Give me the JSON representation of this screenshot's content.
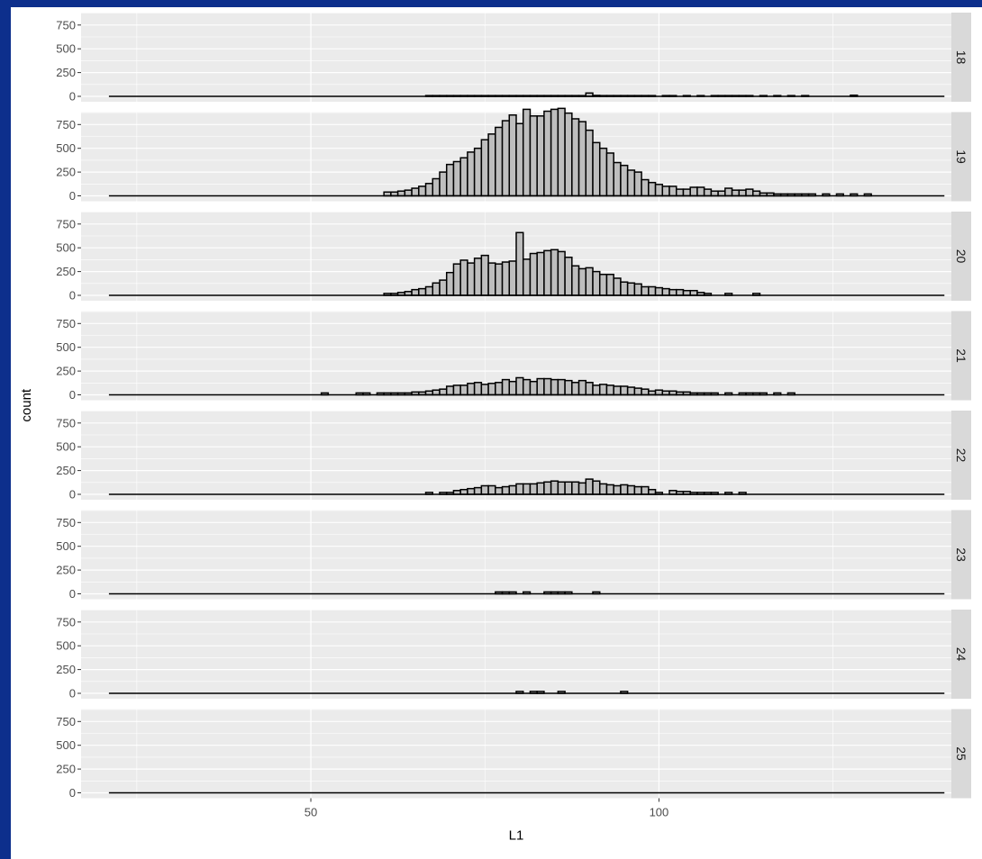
{
  "chart_data": {
    "type": "bar",
    "title": "",
    "xlabel": "L1",
    "ylabel": "count",
    "x_range": [
      17,
      142
    ],
    "y_range": [
      0,
      980
    ],
    "x_ticks": [
      50,
      100
    ],
    "y_ticks": [
      0,
      250,
      500,
      750
    ],
    "x_tick_labels": [
      "50",
      "100"
    ],
    "y_tick_labels": [
      "0",
      "250",
      "500",
      "750"
    ],
    "bin_width": 1,
    "baseline_range": [
      21,
      141
    ],
    "colors": {
      "panel": "#ebebeb",
      "grid": "#ffffff",
      "bar_fill": "#bebebe",
      "bar_stroke": "#000000",
      "strip": "#d9d9d9",
      "text": "#4d4d4d"
    },
    "facets": [
      {
        "label": "18",
        "bins": [
          [
            67,
            8
          ],
          [
            68,
            8
          ],
          [
            69,
            8
          ],
          [
            70,
            8
          ],
          [
            71,
            8
          ],
          [
            72,
            8
          ],
          [
            73,
            8
          ],
          [
            74,
            8
          ],
          [
            75,
            8
          ],
          [
            76,
            8
          ],
          [
            77,
            8
          ],
          [
            78,
            8
          ],
          [
            79,
            8
          ],
          [
            80,
            8
          ],
          [
            81,
            8
          ],
          [
            82,
            8
          ],
          [
            83,
            8
          ],
          [
            84,
            8
          ],
          [
            85,
            8
          ],
          [
            86,
            8
          ],
          [
            87,
            8
          ],
          [
            88,
            8
          ],
          [
            89,
            8
          ],
          [
            90,
            35
          ],
          [
            91,
            10
          ],
          [
            92,
            8
          ],
          [
            93,
            8
          ],
          [
            94,
            8
          ],
          [
            95,
            8
          ],
          [
            96,
            8
          ],
          [
            97,
            8
          ],
          [
            98,
            8
          ],
          [
            99,
            8
          ],
          [
            101,
            8
          ],
          [
            102,
            8
          ],
          [
            104,
            8
          ],
          [
            106,
            8
          ],
          [
            108,
            8
          ],
          [
            109,
            8
          ],
          [
            110,
            8
          ],
          [
            111,
            8
          ],
          [
            112,
            8
          ],
          [
            113,
            8
          ],
          [
            115,
            8
          ],
          [
            117,
            8
          ],
          [
            119,
            8
          ],
          [
            121,
            8
          ],
          [
            128,
            12
          ]
        ]
      },
      {
        "label": "19",
        "bins": [
          [
            61,
            40
          ],
          [
            62,
            40
          ],
          [
            63,
            50
          ],
          [
            64,
            60
          ],
          [
            65,
            80
          ],
          [
            66,
            100
          ],
          [
            67,
            130
          ],
          [
            68,
            180
          ],
          [
            69,
            250
          ],
          [
            70,
            330
          ],
          [
            71,
            360
          ],
          [
            72,
            400
          ],
          [
            73,
            460
          ],
          [
            74,
            500
          ],
          [
            75,
            590
          ],
          [
            76,
            650
          ],
          [
            77,
            720
          ],
          [
            78,
            790
          ],
          [
            79,
            850
          ],
          [
            80,
            760
          ],
          [
            81,
            910
          ],
          [
            82,
            840
          ],
          [
            83,
            840
          ],
          [
            84,
            890
          ],
          [
            85,
            910
          ],
          [
            86,
            920
          ],
          [
            87,
            870
          ],
          [
            88,
            810
          ],
          [
            89,
            780
          ],
          [
            90,
            690
          ],
          [
            91,
            560
          ],
          [
            92,
            500
          ],
          [
            93,
            450
          ],
          [
            94,
            350
          ],
          [
            95,
            320
          ],
          [
            96,
            270
          ],
          [
            97,
            250
          ],
          [
            98,
            170
          ],
          [
            99,
            140
          ],
          [
            100,
            120
          ],
          [
            101,
            100
          ],
          [
            102,
            100
          ],
          [
            103,
            70
          ],
          [
            104,
            70
          ],
          [
            105,
            90
          ],
          [
            106,
            90
          ],
          [
            107,
            70
          ],
          [
            108,
            50
          ],
          [
            109,
            50
          ],
          [
            110,
            80
          ],
          [
            111,
            60
          ],
          [
            112,
            60
          ],
          [
            113,
            70
          ],
          [
            114,
            50
          ],
          [
            115,
            30
          ],
          [
            116,
            30
          ],
          [
            117,
            20
          ],
          [
            118,
            20
          ],
          [
            119,
            20
          ],
          [
            120,
            20
          ],
          [
            121,
            20
          ],
          [
            122,
            20
          ],
          [
            124,
            20
          ],
          [
            126,
            20
          ],
          [
            128,
            20
          ],
          [
            130,
            20
          ]
        ]
      },
      {
        "label": "20",
        "bins": [
          [
            61,
            20
          ],
          [
            62,
            20
          ],
          [
            63,
            30
          ],
          [
            64,
            40
          ],
          [
            65,
            60
          ],
          [
            66,
            70
          ],
          [
            67,
            90
          ],
          [
            68,
            130
          ],
          [
            69,
            160
          ],
          [
            70,
            240
          ],
          [
            71,
            330
          ],
          [
            72,
            370
          ],
          [
            73,
            340
          ],
          [
            74,
            390
          ],
          [
            75,
            420
          ],
          [
            76,
            340
          ],
          [
            77,
            330
          ],
          [
            78,
            350
          ],
          [
            79,
            360
          ],
          [
            80,
            660
          ],
          [
            81,
            380
          ],
          [
            82,
            440
          ],
          [
            83,
            450
          ],
          [
            84,
            470
          ],
          [
            85,
            480
          ],
          [
            86,
            460
          ],
          [
            87,
            400
          ],
          [
            88,
            310
          ],
          [
            89,
            280
          ],
          [
            90,
            290
          ],
          [
            91,
            250
          ],
          [
            92,
            220
          ],
          [
            93,
            220
          ],
          [
            94,
            180
          ],
          [
            95,
            140
          ],
          [
            96,
            130
          ],
          [
            97,
            120
          ],
          [
            98,
            90
          ],
          [
            99,
            90
          ],
          [
            100,
            80
          ],
          [
            101,
            70
          ],
          [
            102,
            60
          ],
          [
            103,
            60
          ],
          [
            104,
            50
          ],
          [
            105,
            50
          ],
          [
            106,
            30
          ],
          [
            107,
            20
          ],
          [
            110,
            20
          ],
          [
            114,
            20
          ]
        ]
      },
      {
        "label": "21",
        "bins": [
          [
            52,
            20
          ],
          [
            57,
            20
          ],
          [
            58,
            20
          ],
          [
            60,
            20
          ],
          [
            61,
            20
          ],
          [
            62,
            20
          ],
          [
            63,
            20
          ],
          [
            64,
            20
          ],
          [
            65,
            30
          ],
          [
            66,
            30
          ],
          [
            67,
            40
          ],
          [
            68,
            50
          ],
          [
            69,
            60
          ],
          [
            70,
            90
          ],
          [
            71,
            100
          ],
          [
            72,
            100
          ],
          [
            73,
            120
          ],
          [
            74,
            130
          ],
          [
            75,
            110
          ],
          [
            76,
            120
          ],
          [
            77,
            130
          ],
          [
            78,
            160
          ],
          [
            79,
            140
          ],
          [
            80,
            180
          ],
          [
            81,
            160
          ],
          [
            82,
            140
          ],
          [
            83,
            170
          ],
          [
            84,
            170
          ],
          [
            85,
            160
          ],
          [
            86,
            160
          ],
          [
            87,
            150
          ],
          [
            88,
            130
          ],
          [
            89,
            150
          ],
          [
            90,
            130
          ],
          [
            91,
            100
          ],
          [
            92,
            110
          ],
          [
            93,
            100
          ],
          [
            94,
            90
          ],
          [
            95,
            90
          ],
          [
            96,
            80
          ],
          [
            97,
            70
          ],
          [
            98,
            60
          ],
          [
            99,
            40
          ],
          [
            100,
            50
          ],
          [
            101,
            40
          ],
          [
            102,
            40
          ],
          [
            103,
            30
          ],
          [
            104,
            30
          ],
          [
            105,
            20
          ],
          [
            106,
            20
          ],
          [
            107,
            20
          ],
          [
            108,
            20
          ],
          [
            110,
            20
          ],
          [
            112,
            20
          ],
          [
            113,
            20
          ],
          [
            114,
            20
          ],
          [
            115,
            20
          ],
          [
            117,
            20
          ],
          [
            119,
            20
          ]
        ]
      },
      {
        "label": "22",
        "bins": [
          [
            67,
            20
          ],
          [
            69,
            20
          ],
          [
            70,
            20
          ],
          [
            71,
            40
          ],
          [
            72,
            50
          ],
          [
            73,
            60
          ],
          [
            74,
            70
          ],
          [
            75,
            90
          ],
          [
            76,
            90
          ],
          [
            77,
            70
          ],
          [
            78,
            80
          ],
          [
            79,
            90
          ],
          [
            80,
            110
          ],
          [
            81,
            110
          ],
          [
            82,
            110
          ],
          [
            83,
            120
          ],
          [
            84,
            130
          ],
          [
            85,
            140
          ],
          [
            86,
            130
          ],
          [
            87,
            130
          ],
          [
            88,
            130
          ],
          [
            89,
            120
          ],
          [
            90,
            160
          ],
          [
            91,
            140
          ],
          [
            92,
            110
          ],
          [
            93,
            100
          ],
          [
            94,
            90
          ],
          [
            95,
            100
          ],
          [
            96,
            90
          ],
          [
            97,
            80
          ],
          [
            98,
            80
          ],
          [
            99,
            50
          ],
          [
            100,
            20
          ],
          [
            102,
            40
          ],
          [
            103,
            30
          ],
          [
            104,
            30
          ],
          [
            105,
            20
          ],
          [
            106,
            20
          ],
          [
            107,
            20
          ],
          [
            108,
            20
          ],
          [
            110,
            20
          ],
          [
            112,
            20
          ]
        ]
      },
      {
        "label": "23",
        "bins": [
          [
            77,
            20
          ],
          [
            78,
            20
          ],
          [
            79,
            20
          ],
          [
            81,
            20
          ],
          [
            84,
            20
          ],
          [
            85,
            20
          ],
          [
            86,
            20
          ],
          [
            87,
            20
          ],
          [
            91,
            20
          ]
        ]
      },
      {
        "label": "24",
        "bins": [
          [
            80,
            20
          ],
          [
            82,
            20
          ],
          [
            83,
            20
          ],
          [
            86,
            20
          ],
          [
            95,
            20
          ]
        ]
      },
      {
        "label": "25",
        "bins": []
      }
    ]
  }
}
